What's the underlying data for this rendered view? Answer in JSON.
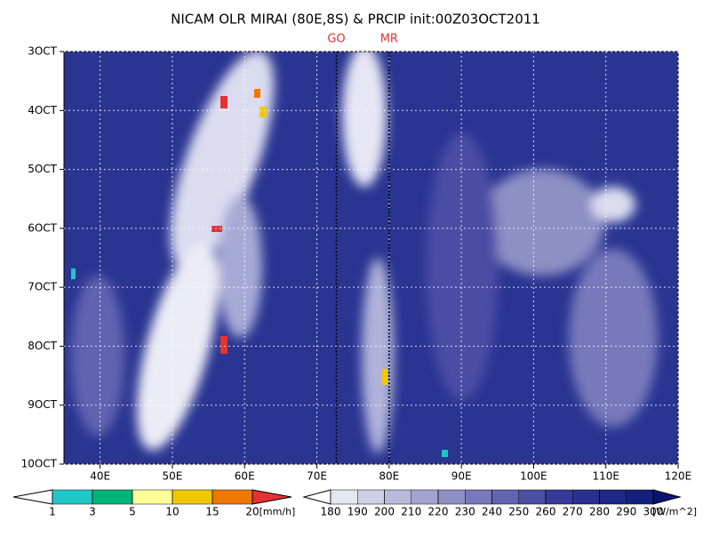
{
  "chart_data": {
    "type": "heatmap",
    "title": "NICAM OLR MIRAI (80E,8S) & PRCIP init:00Z03OCT2011",
    "xlim": [
      35,
      120
    ],
    "xticks": [
      {
        "value": 40,
        "label": "40E"
      },
      {
        "value": 50,
        "label": "50E"
      },
      {
        "value": 60,
        "label": "60E"
      },
      {
        "value": 70,
        "label": "70E"
      },
      {
        "value": 80,
        "label": "80E"
      },
      {
        "value": 90,
        "label": "90E"
      },
      {
        "value": 100,
        "label": "100E"
      },
      {
        "value": 110,
        "label": "110E"
      },
      {
        "value": 120,
        "label": "120E"
      }
    ],
    "ylim": [
      3,
      10
    ],
    "yticks": [
      {
        "value": 3,
        "label": "3OCT"
      },
      {
        "value": 4,
        "label": "4OCT"
      },
      {
        "value": 5,
        "label": "5OCT"
      },
      {
        "value": 6,
        "label": "6OCT"
      },
      {
        "value": 7,
        "label": "7OCT"
      },
      {
        "value": 8,
        "label": "8OCT"
      },
      {
        "value": 9,
        "label": "9OCT"
      },
      {
        "value": 10,
        "label": "10OCT"
      }
    ],
    "grid": true,
    "markers": [
      {
        "label": "GO",
        "x": 72.7
      },
      {
        "label": "MR",
        "x": 80
      }
    ],
    "colorbars": [
      {
        "levels": [
          1,
          3,
          5,
          10,
          15,
          20
        ],
        "unit": "[mm/h]",
        "colors": [
          "#ffffff",
          "#1ec8c8",
          "#00b478",
          "#ffff96",
          "#f0c800",
          "#f07800",
          "#e63232"
        ]
      },
      {
        "levels": [
          180,
          190,
          200,
          210,
          220,
          230,
          240,
          250,
          260,
          270,
          280,
          290,
          300
        ],
        "unit": "[W/m^2]",
        "colors": [
          "#ffffff",
          "#e6e6f0",
          "#cfd0e6",
          "#b9badb",
          "#a3a5d0",
          "#8d8fc5",
          "#7779ba",
          "#6164b0",
          "#4b4ea5",
          "#35399a",
          "#283090",
          "#1e2887",
          "#14207d",
          "#0a1470"
        ]
      }
    ]
  }
}
